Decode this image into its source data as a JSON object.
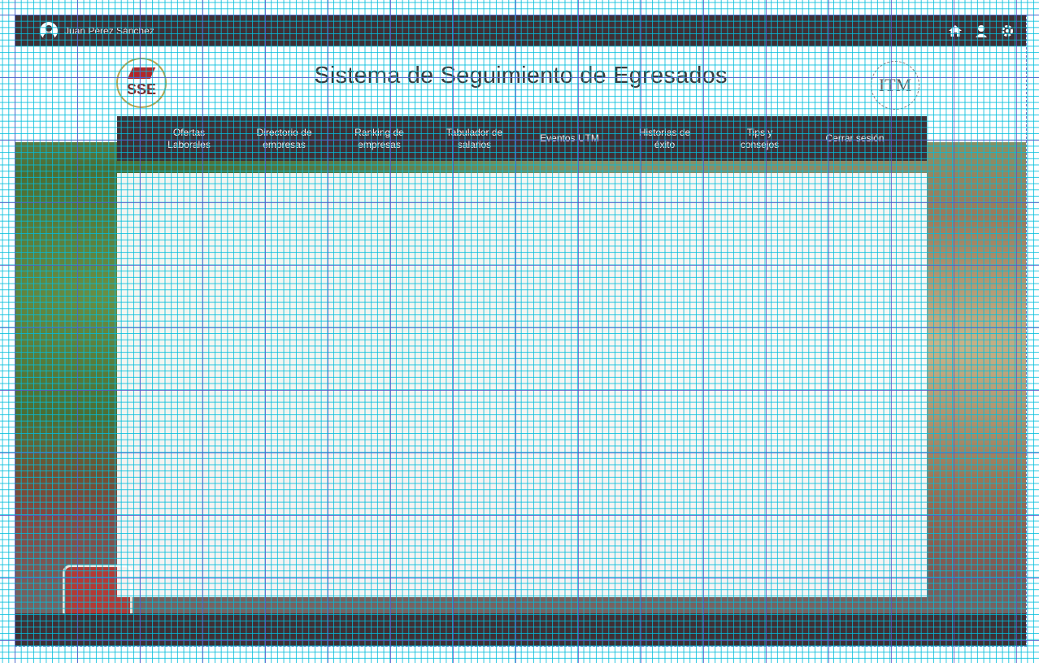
{
  "topbar": {
    "user_name": "Juan Pérez Sánchez",
    "icons": [
      "home-icon",
      "user-profile-icon",
      "settings-gear-icon"
    ]
  },
  "header": {
    "title": "Sistema de Seguimiento de Egresados",
    "left_logo_text": "SSE",
    "right_logo_text": "ITM"
  },
  "nav": {
    "items": [
      {
        "label": "Ofertas Laborales"
      },
      {
        "label": "Directorio de empresas"
      },
      {
        "label": "Ranking de empresas"
      },
      {
        "label": "Tabulador de salarios"
      },
      {
        "label": "Eventos UTM"
      },
      {
        "label": "Historias de éxito"
      },
      {
        "label": "Tips y consejos"
      },
      {
        "label": "Cerrar sesión"
      }
    ]
  },
  "colors": {
    "bar": "#3f2f34",
    "nav_text": "#f3eef0",
    "title_text": "#3a3a3a",
    "logo_red": "#b3262a"
  }
}
